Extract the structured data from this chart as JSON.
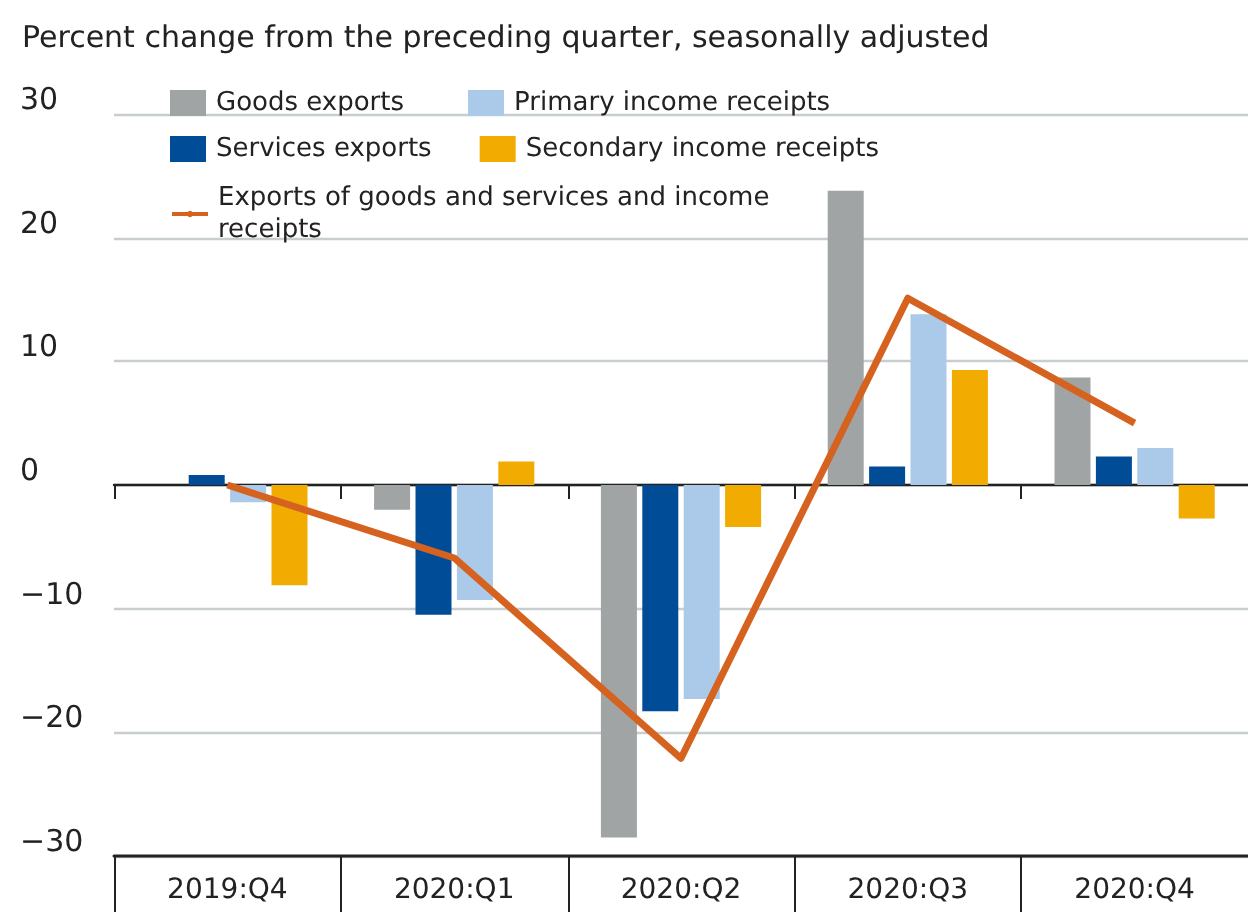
{
  "chart_data": {
    "type": "bar",
    "title": "Percent change from the preceding quarter, seasonally adjusted",
    "categories": [
      "2019:Q4",
      "2020:Q1",
      "2020:Q2",
      "2020:Q3",
      "2020:Q4"
    ],
    "series": [
      {
        "name": "Goods exports",
        "color": "#a0a4a5",
        "values": [
          0,
          -2.0,
          -28.5,
          23.8,
          8.7
        ]
      },
      {
        "name": "Services exports",
        "color": "#004c97",
        "values": [
          0.8,
          -10.5,
          -18.3,
          1.5,
          2.3
        ]
      },
      {
        "name": "Primary income receipts",
        "color": "#abc9e9",
        "values": [
          -1.4,
          -9.3,
          -17.3,
          13.8,
          3.0
        ]
      },
      {
        "name": "Secondary income receipts",
        "color": "#f2ab00",
        "values": [
          -8.1,
          1.9,
          -3.4,
          9.3,
          -2.7
        ]
      },
      {
        "name": "Exports of goods and services and income receipts",
        "type": "line",
        "color": "#d5621f",
        "values": [
          0,
          -5.9,
          -22.1,
          15.1,
          5.0
        ]
      }
    ],
    "ylim": [
      -30,
      30
    ],
    "yticks": [
      -30,
      -20,
      -10,
      0,
      10,
      20,
      30
    ],
    "grid": "y",
    "legend": "top",
    "marker": "none"
  }
}
